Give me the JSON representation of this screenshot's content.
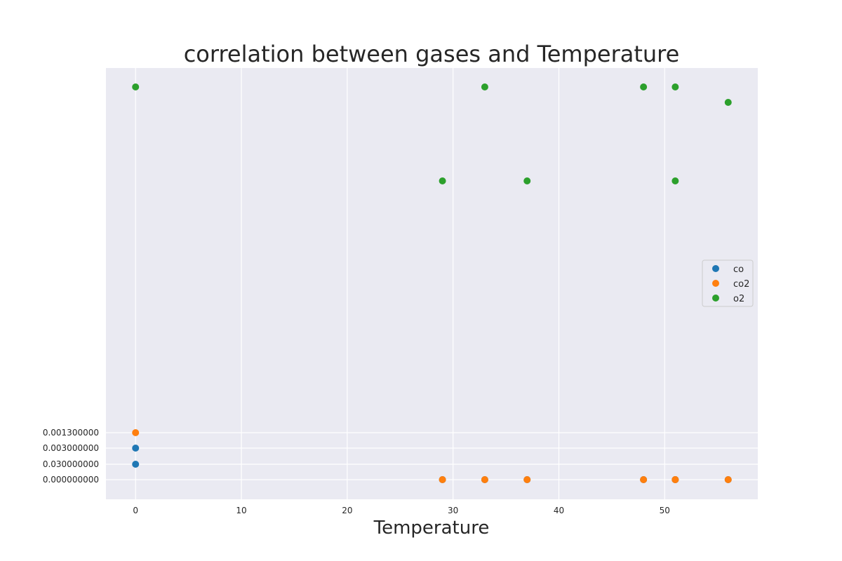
{
  "chart_data": {
    "type": "scatter",
    "title": "correlation between gases and Temperature",
    "xlabel": "Temperature",
    "ylabel": "",
    "xlim": [
      -2.8,
      58.8
    ],
    "x_ticks": [
      0,
      10,
      20,
      30,
      40,
      50
    ],
    "y_axis_kind": "categorical",
    "y_categories": [
      "0.000000000",
      "0.030000000",
      "0.003000000",
      "0.001300000",
      "",
      "",
      "",
      "",
      "",
      "",
      "",
      "",
      "",
      "",
      "",
      "",
      "",
      "",
      "",
      "",
      "",
      "",
      "",
      "",
      "",
      "",
      ""
    ],
    "y_tick_labels_shown": [
      "0.001300000",
      "0.003000000",
      "0.030000000",
      "0.000000000"
    ],
    "y_positions_with_points": {
      "o2_upper": "unlabeled",
      "o2_lower": "unlabeled",
      "o2_top_secondary": "unlabeled"
    },
    "grid": true,
    "legend_position": "center-right",
    "series": [
      {
        "name": "co",
        "color": "#1f77b4",
        "points": [
          {
            "x": 0,
            "y": "0.030000000"
          },
          {
            "x": 0,
            "y": "0.003000000"
          },
          {
            "x": 29,
            "y": "0.000000000"
          },
          {
            "x": 33,
            "y": "0.000000000"
          },
          {
            "x": 37,
            "y": "0.000000000"
          },
          {
            "x": 48,
            "y": "0.000000000"
          },
          {
            "x": 51,
            "y": "0.000000000"
          },
          {
            "x": 51,
            "y": "0.000000000"
          },
          {
            "x": 56,
            "y": "0.000000000"
          }
        ]
      },
      {
        "name": "co2",
        "color": "#ff7f0e",
        "points": [
          {
            "x": 0,
            "y": "0.001300000"
          },
          {
            "x": 29,
            "y": "0.000000000"
          },
          {
            "x": 33,
            "y": "0.000000000"
          },
          {
            "x": 37,
            "y": "0.000000000"
          },
          {
            "x": 48,
            "y": "0.000000000"
          },
          {
            "x": 51,
            "y": "0.000000000"
          },
          {
            "x": 51,
            "y": "0.000000000"
          },
          {
            "x": 56,
            "y": "0.000000000"
          }
        ]
      },
      {
        "name": "o2",
        "color": "#2ca02c",
        "points": [
          {
            "x": 0,
            "y": "top"
          },
          {
            "x": 33,
            "y": "top"
          },
          {
            "x": 48,
            "y": "top"
          },
          {
            "x": 51,
            "y": "top"
          },
          {
            "x": 56,
            "y": "second"
          },
          {
            "x": 29,
            "y": "mid"
          },
          {
            "x": 37,
            "y": "mid"
          },
          {
            "x": 51,
            "y": "mid"
          }
        ]
      }
    ]
  }
}
